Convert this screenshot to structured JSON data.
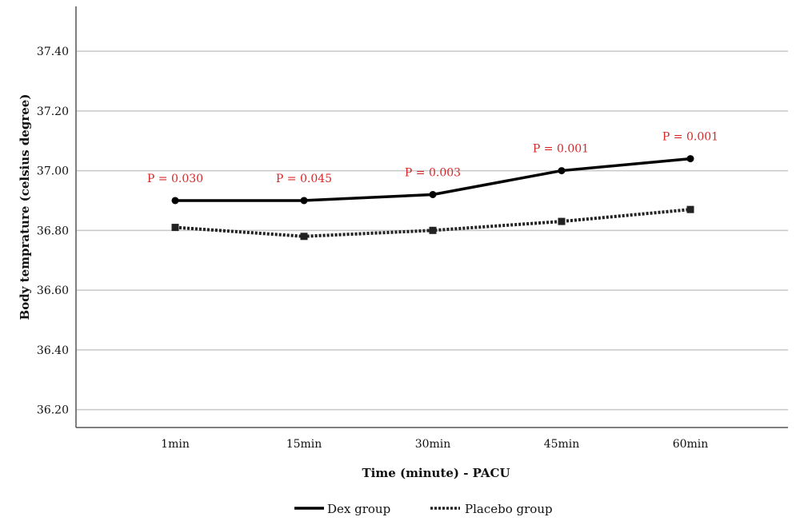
{
  "chart_data": {
    "type": "line",
    "xlabel": "Time (minute) - PACU",
    "ylabel": "Body temprature (celsius degree)",
    "categories": [
      "1min",
      "15min",
      "30min",
      "45min",
      "60min"
    ],
    "ylim": [
      36.14,
      37.55
    ],
    "yticks": [
      36.2,
      36.4,
      36.6,
      36.8,
      37.0,
      37.2,
      37.4
    ],
    "ytick_labels": [
      "36.20",
      "36.40",
      "36.60",
      "36.80",
      "37.00",
      "37.20",
      "37.40"
    ],
    "grid": true,
    "legend_position": "bottom-center",
    "series": [
      {
        "name": "Dex group",
        "values": [
          36.9,
          36.9,
          36.92,
          37.0,
          37.04
        ],
        "line_style": "solid",
        "marker": "circle",
        "color": "#000000"
      },
      {
        "name": "Placebo group",
        "values": [
          36.81,
          36.78,
          36.8,
          36.83,
          36.87
        ],
        "line_style": "dotted",
        "marker": "square",
        "color": "#222222"
      }
    ],
    "annotations": [
      "P = 0.030",
      "P = 0.045",
      "P = 0.003",
      "P = 0.001",
      "P = 0.001"
    ]
  },
  "colors": {
    "annotation": "#d62828",
    "grid": "#c8c8c8",
    "axis": "#555555"
  }
}
